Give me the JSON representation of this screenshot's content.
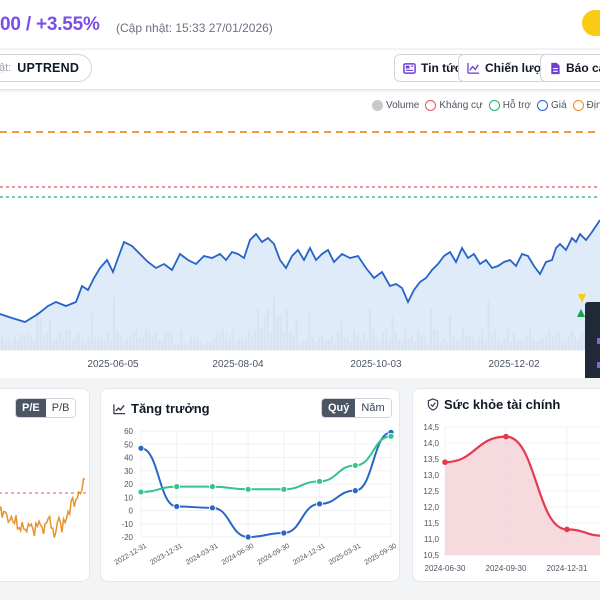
{
  "header": {
    "price_change": "00 / +3.55%",
    "update_text": "(Cập nhật: 15:33 27/01/2026)"
  },
  "trend": {
    "prefix": "ật:",
    "value": "UPTREND"
  },
  "toolbar": {
    "news_label": "Tin tức",
    "strategy_label": "Chiến lược",
    "report_label": "Báo cáo"
  },
  "main_chart": {
    "legend": [
      {
        "label": "Volume",
        "color": "#c7c9cc",
        "filled": true
      },
      {
        "label": "Kháng cự",
        "color": "#e05565",
        "filled": false
      },
      {
        "label": "Hỗ trợ",
        "color": "#2aa876",
        "filled": false
      },
      {
        "label": "Giá",
        "color": "#2563c9",
        "filled": false
      },
      {
        "label": "Định g",
        "color": "#f08a24",
        "filled": false
      }
    ],
    "x_ticks": [
      "2025-06-05",
      "2025-08-04",
      "2025-10-03",
      "2025-12-02"
    ]
  },
  "pe_card": {
    "pe_label": "P/E",
    "pb_label": "P/B",
    "active": "P/E"
  },
  "growth_card": {
    "title": "Tăng trưởng",
    "quarter_label": "Quý",
    "year_label": "Năm",
    "active": "Quý"
  },
  "health_card": {
    "title": "Sức khỏe tài chính"
  },
  "chart_data": [
    {
      "type": "line",
      "name": "growth",
      "categories": [
        "2022-12-31",
        "2023-12-31",
        "2024-03-31",
        "2024-06-30",
        "2024-09-30",
        "2024-12-31",
        "2025-03-31",
        "2025-09-30"
      ],
      "series": [
        {
          "color": "#2a66c8",
          "values": [
            47,
            3,
            2,
            -20,
            -17,
            5,
            15,
            59
          ]
        },
        {
          "color": "#34c48b",
          "values": [
            14,
            18,
            18,
            16,
            16,
            22,
            34,
            56
          ]
        }
      ],
      "ylim": [
        -20,
        60
      ],
      "y_ticks": [
        60,
        50,
        40,
        30,
        20,
        10,
        0,
        -10,
        -20
      ]
    },
    {
      "type": "area",
      "name": "health",
      "categories": [
        "2024-06-30",
        "2024-09-30",
        "2024-12-31"
      ],
      "x": [
        0,
        1,
        2,
        2.6
      ],
      "values": [
        13.4,
        14.2,
        11.3,
        11.1
      ],
      "ylim": [
        10.5,
        14.5
      ],
      "y_ticks": [
        "14,5",
        "14,0",
        "13,5",
        "13,0",
        "12,5",
        "12,0",
        "11,5",
        "11,0",
        "10,5"
      ],
      "color": "#e53950"
    }
  ]
}
